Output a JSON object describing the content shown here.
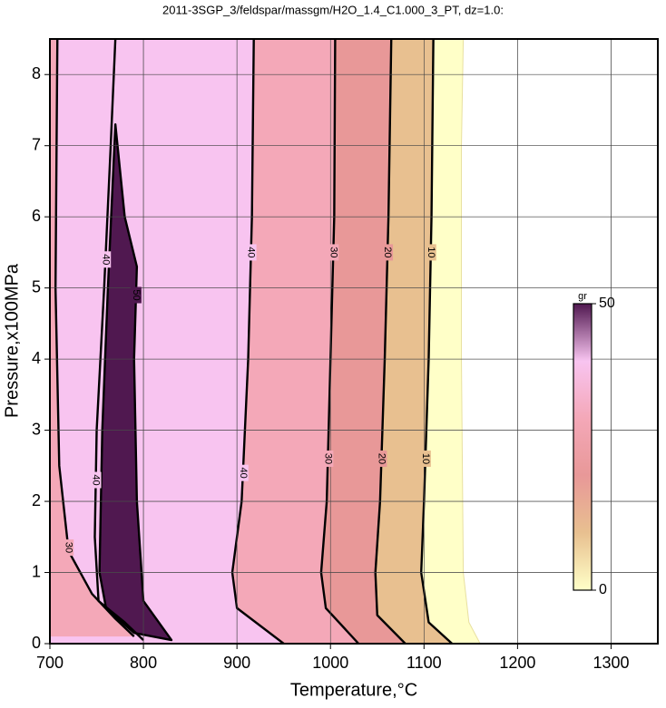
{
  "chart_data": {
    "type": "contour",
    "title": "2011-3SGP_3/feldspar/massgm/H2O_1.4_C1.000_3_PT, dz=1.0:",
    "x_label": "Temperature,°C",
    "y_label": "Pressure,x100MPa",
    "xlim": [
      700,
      1350
    ],
    "ylim": [
      0,
      8.5
    ],
    "xticks": [
      700,
      800,
      900,
      1000,
      1100,
      1200,
      1300
    ],
    "yticks": [
      0,
      1,
      2,
      3,
      4,
      5,
      6,
      7,
      8
    ],
    "grid": true,
    "colorbar": {
      "label": "gr",
      "lim": [
        0,
        50
      ],
      "ticks": [
        0,
        50
      ],
      "colors": [
        "#ffffc8",
        "#e8c090",
        "#e89898",
        "#f4a8b8",
        "#f8c4f0",
        "#501850"
      ]
    },
    "contours": [
      {
        "level": 0,
        "x": [
          1160,
          1148,
          1142,
          1140,
          1140,
          1142
        ],
        "y": [
          0,
          0.3,
          1,
          4,
          7,
          8.5
        ]
      },
      {
        "level": 10,
        "x": [
          1130,
          1105,
          1097,
          1100,
          1105,
          1108,
          1110
        ],
        "y": [
          0,
          0.3,
          1,
          2,
          4,
          6,
          8.5
        ]
      },
      {
        "level": 20,
        "x": [
          1080,
          1050,
          1048,
          1053,
          1058,
          1062,
          1065
        ],
        "y": [
          0,
          0.4,
          1,
          2,
          4,
          6,
          8.5
        ]
      },
      {
        "level": 30,
        "x": [
          1030,
          995,
          990,
          996,
          1000,
          1004,
          1005
        ],
        "y": [
          0,
          0.5,
          1,
          2,
          4,
          6,
          8.5
        ]
      },
      {
        "level": 40,
        "x": [
          950,
          900,
          895,
          905,
          912,
          916,
          918
        ],
        "y": [
          0,
          0.5,
          1,
          2,
          4,
          6,
          8.5
        ]
      },
      {
        "level": 40,
        "x": [
          770,
          765,
          758,
          750,
          748,
          752,
          780,
          800
        ],
        "y": [
          8.5,
          7,
          5,
          3,
          1.5,
          0.6,
          0.3,
          0.05
        ]
      },
      {
        "level": 30,
        "x": [
          708,
          706,
          710,
          720,
          745,
          770,
          790
        ],
        "y": [
          8.5,
          5,
          2.5,
          1.3,
          0.7,
          0.35,
          0.1
        ]
      },
      {
        "level": 50,
        "x": [
          830,
          800,
          793,
          790,
          793,
          780,
          770,
          762,
          756,
          753,
          760,
          790,
          830
        ],
        "y": [
          0.05,
          0.6,
          2,
          4,
          5.3,
          6,
          7.3,
          5,
          3,
          1,
          0.5,
          0.15,
          0.05
        ],
        "closed": true
      }
    ]
  }
}
